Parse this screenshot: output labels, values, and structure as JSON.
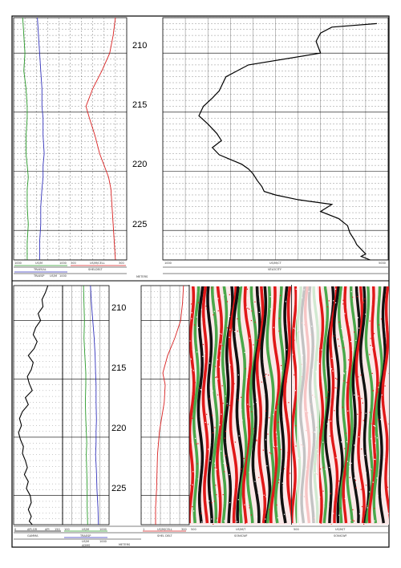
{
  "colors": {
    "gamma": "#2a9a2a",
    "tensp": "#3333bb",
    "shear_delt": "#d92020",
    "velocity": "#000000",
    "wave_red": "#e01818",
    "wave_green": "#4aa84a",
    "wave_black": "#111111",
    "grid": "#444444"
  },
  "depth_axis": {
    "unit_label": "METERS",
    "ticks": [
      "210",
      "215",
      "220",
      "225"
    ],
    "ylim": [
      207,
      227.5
    ]
  },
  "chart_data": [
    {
      "type": "line",
      "panel": "upper-left-logs",
      "ylim": [
        207,
        227.5
      ],
      "series": [
        {
          "name": "TRAESAL",
          "x": [
            0.08,
            0.09,
            0.1,
            0.09,
            0.11,
            0.12,
            0.12,
            0.11,
            0.11,
            0.12,
            0.13,
            0.12,
            0.12,
            0.13,
            0.12,
            0.12
          ],
          "y": [
            207,
            208.5,
            210,
            211.5,
            213,
            214.5,
            215.5,
            217,
            218.5,
            219.5,
            220.5,
            221.5,
            223,
            224.5,
            226,
            227.5
          ]
        },
        {
          "name": "TRAESP",
          "x": [
            0.21,
            0.22,
            0.23,
            0.24,
            0.25,
            0.25,
            0.26,
            0.26,
            0.27,
            0.26,
            0.26,
            0.25,
            0.24,
            0.24,
            0.23,
            0.23
          ],
          "y": [
            207,
            208.5,
            210,
            211.5,
            213,
            214.5,
            215.5,
            217,
            218.5,
            219.5,
            220.5,
            221.5,
            223,
            224.5,
            226,
            227.5
          ]
        },
        {
          "name": "SHELDELT",
          "x": [
            0.9,
            0.88,
            0.85,
            0.78,
            0.7,
            0.64,
            0.67,
            0.72,
            0.76,
            0.8,
            0.84,
            0.86,
            0.87,
            0.88,
            0.89,
            0.9
          ],
          "y": [
            207,
            208.5,
            210,
            211.5,
            213,
            214.5,
            215.5,
            217,
            218.5,
            219.5,
            220.5,
            221.5,
            223,
            224.5,
            226,
            227.5
          ]
        }
      ],
      "footer_labels": [
        "1000",
        "US/M",
        "1000",
        "300",
        "US/M/CELL",
        "300",
        "TRAESAL",
        "SHELDELT",
        "TRAESP",
        "US/M",
        "1000"
      ]
    },
    {
      "type": "line",
      "panel": "upper-right-velocity",
      "ylim": [
        207,
        227.5
      ],
      "series": [
        {
          "name": "VELOCITY",
          "x": [
            0.95,
            0.75,
            0.7,
            0.68,
            0.7,
            0.38,
            0.28,
            0.25,
            0.22,
            0.18,
            0.16,
            0.2,
            0.24,
            0.26,
            0.22,
            0.25,
            0.3,
            0.35,
            0.38,
            0.4,
            0.42,
            0.44,
            0.45,
            0.5,
            0.6,
            0.75,
            0.7,
            0.78,
            0.82,
            0.83,
            0.85,
            0.86,
            0.88,
            0.9,
            0.88,
            0.92
          ],
          "y": [
            207.5,
            207.8,
            208.3,
            209,
            210,
            211,
            212,
            213.2,
            213.8,
            214.5,
            215.3,
            216,
            216.8,
            217.4,
            218,
            218.6,
            219,
            219.4,
            219.8,
            220.2,
            220.8,
            221.3,
            221.7,
            222,
            222.4,
            222.8,
            223.4,
            224,
            224.6,
            225.2,
            225.8,
            226.2,
            226.6,
            227,
            227.2,
            227.5
          ]
        }
      ],
      "footer_labels": [
        "1000",
        "US/M/CT",
        "VELOCITY",
        "5000"
      ]
    },
    {
      "type": "line",
      "panel": "lower-gamma",
      "ylim": [
        207,
        227.5
      ],
      "series": [
        {
          "name": "GAMMA",
          "x": [
            0.7,
            0.65,
            0.58,
            0.6,
            0.5,
            0.55,
            0.45,
            0.4,
            0.48,
            0.42,
            0.3,
            0.4,
            0.36,
            0.28,
            0.32,
            0.38,
            0.24,
            0.3,
            0.18,
            0.12,
            0.16,
            0.1,
            0.14,
            0.2,
            0.18,
            0.24,
            0.28,
            0.22,
            0.3,
            0.26,
            0.34,
            0.36,
            0.3,
            0.36,
            0.32,
            0.38
          ],
          "y": [
            207,
            207.6,
            208.2,
            208.8,
            209.4,
            210,
            210.6,
            211.2,
            211.8,
            212.4,
            213,
            213.6,
            214.2,
            214.8,
            215.4,
            216,
            216.6,
            217.2,
            217.8,
            218.4,
            219,
            219.6,
            220.2,
            220.8,
            221.4,
            222,
            222.6,
            223.2,
            223.8,
            224.4,
            225,
            225.6,
            226.2,
            226.8,
            227.2,
            227.5
          ]
        }
      ],
      "footer_labels": [
        "API-GR",
        "GAMMA",
        "0",
        "API",
        "150"
      ]
    },
    {
      "type": "line",
      "panel": "lower-tensp",
      "ylim": [
        207,
        227.5
      ],
      "series": [
        {
          "name": "TRAESAL",
          "x": [
            0.45,
            0.46,
            0.47,
            0.46,
            0.48,
            0.5,
            0.5,
            0.49,
            0.5,
            0.51,
            0.52,
            0.51,
            0.52,
            0.53,
            0.53,
            0.54
          ],
          "y": [
            207,
            208.5,
            210,
            211.5,
            213,
            214.5,
            215.5,
            217,
            218.5,
            219.5,
            220.5,
            221.5,
            223,
            224.5,
            226,
            227.5
          ]
        },
        {
          "name": "TRAESP",
          "x": [
            0.6,
            0.62,
            0.65,
            0.68,
            0.7,
            0.71,
            0.72,
            0.72,
            0.73,
            0.72,
            0.72,
            0.71,
            0.73,
            0.74,
            0.76,
            0.77
          ],
          "y": [
            207,
            208.5,
            210,
            211.5,
            213,
            214.5,
            215.5,
            217,
            218.5,
            219.5,
            220.5,
            221.5,
            223,
            224.5,
            226,
            227.5
          ]
        }
      ],
      "footer_labels": [
        "100",
        "US/M",
        "1000",
        "TRAESP",
        "US/M",
        "1000",
        "ADMS"
      ]
    },
    {
      "type": "line",
      "panel": "lower-shear",
      "ylim": [
        207,
        227.5
      ],
      "series": [
        {
          "name": "SHELDELT",
          "x": [
            0.88,
            0.86,
            0.82,
            0.7,
            0.55,
            0.45,
            0.5,
            0.48,
            0.42,
            0.38,
            0.36,
            0.34,
            0.33,
            0.32,
            0.3,
            0.3
          ],
          "y": [
            207,
            208.5,
            210,
            211.5,
            213,
            214.5,
            215.5,
            217,
            218.5,
            219.5,
            220.5,
            221.5,
            223,
            224.5,
            226,
            227.5
          ]
        }
      ],
      "footer_labels": [
        "1",
        "US/M/CELL",
        "SHEL DELT",
        "300"
      ]
    }
  ],
  "waveform_panels": [
    {
      "name": "waveform-left",
      "footer_labels": [
        "500",
        "US/M/T",
        "SONICWF"
      ]
    },
    {
      "name": "waveform-right",
      "footer_labels": [
        "500",
        "US/M/T",
        "SONICWF"
      ]
    }
  ]
}
